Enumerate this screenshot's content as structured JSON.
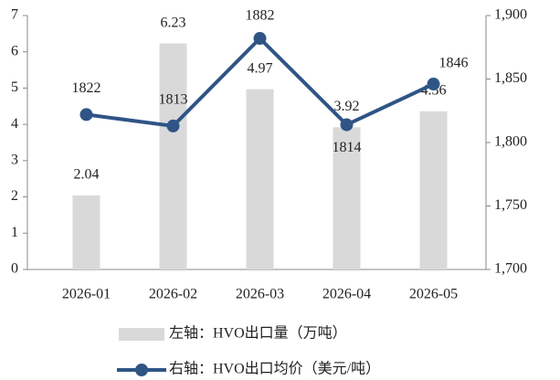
{
  "chart_data": {
    "type": "bar",
    "categories": [
      "2026-01",
      "2026-02",
      "2026-03",
      "2026-04",
      "2026-05"
    ],
    "series": [
      {
        "name": "左轴：HVO出口量（万吨）",
        "type": "bar",
        "color": "#d9d9d9",
        "values": [
          2.04,
          6.23,
          4.97,
          3.92,
          4.36
        ]
      },
      {
        "name": "右轴：HVO出口均价（美元/吨）",
        "type": "line",
        "axis": "y2",
        "color": "#2f5486",
        "values": [
          1822,
          1813,
          1882,
          1814,
          1846
        ]
      }
    ],
    "ylim": [
      0,
      7
    ],
    "yticks": [
      0,
      1,
      2,
      3,
      4,
      5,
      6,
      7
    ],
    "y2lim": [
      1700,
      1900
    ],
    "y2ticks": [
      {
        "value": 1700,
        "label": "1,700"
      },
      {
        "value": 1750,
        "label": "1,750"
      },
      {
        "value": 1800,
        "label": "1,800"
      },
      {
        "value": 1850,
        "label": "1,850"
      },
      {
        "value": 1900,
        "label": "1,900"
      }
    ],
    "legend": "bottom"
  }
}
